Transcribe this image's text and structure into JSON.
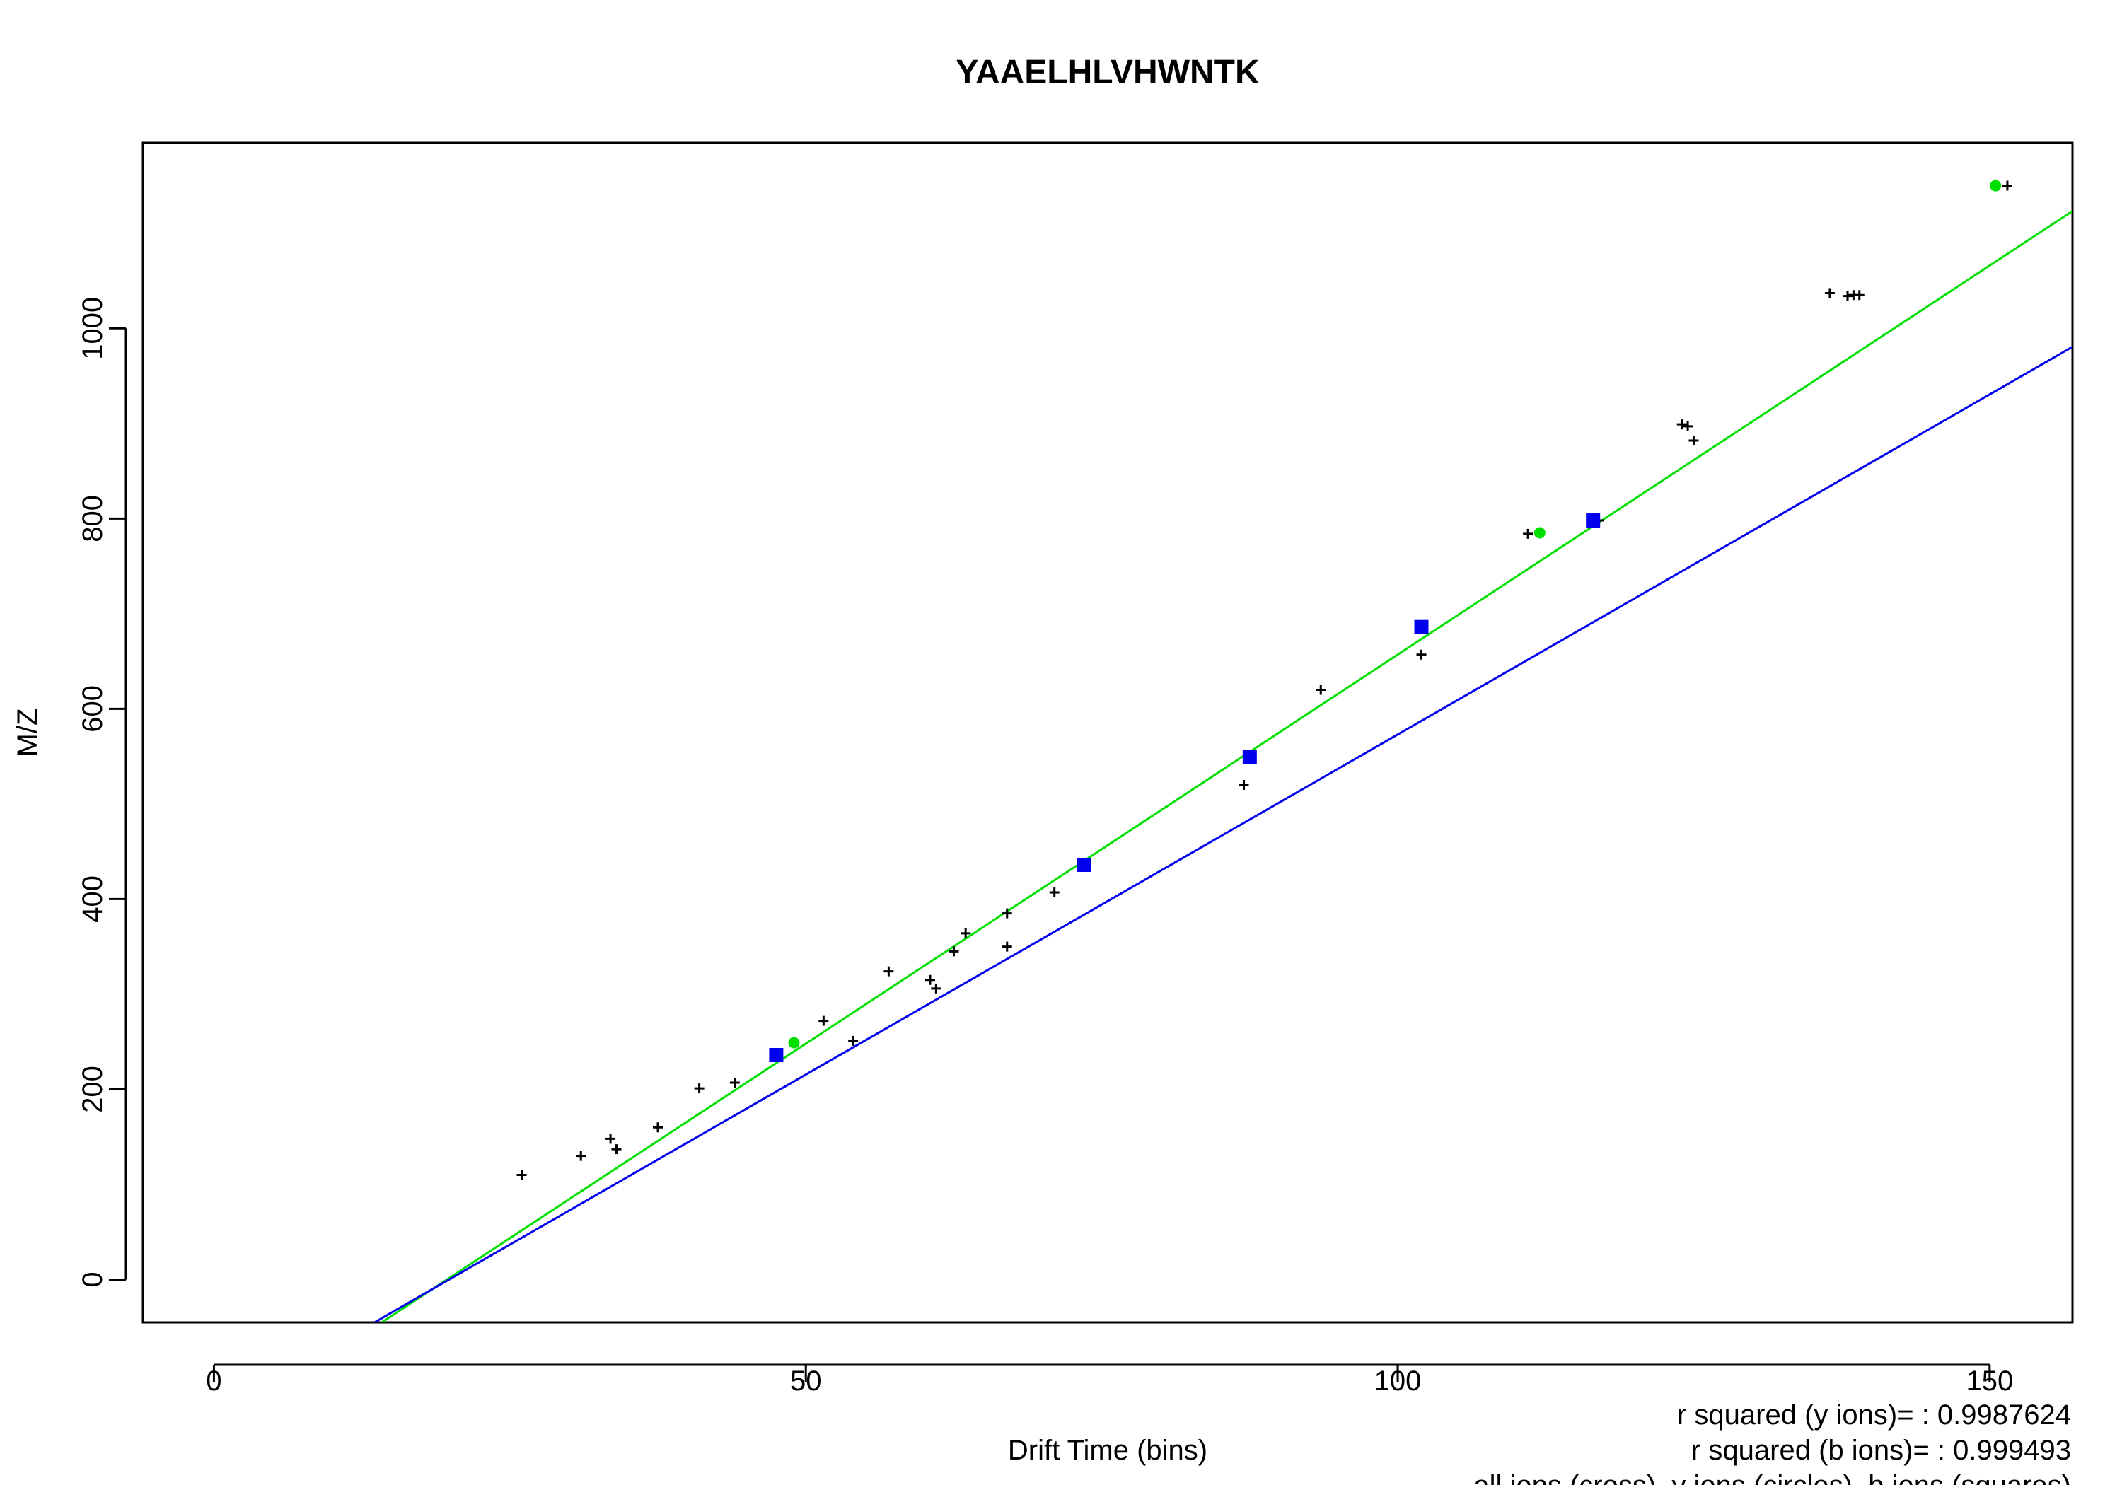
{
  "chart_data": {
    "type": "scatter",
    "title": "YAAELHLVHWNTK",
    "xlabel": "Drift Time (bins)",
    "ylabel": "M/Z",
    "xlim": [
      -6,
      157
    ],
    "ylim": [
      -45,
      1195
    ],
    "xticks": [
      0,
      50,
      100,
      150
    ],
    "yticks": [
      0,
      200,
      400,
      600,
      800,
      1000
    ],
    "grid": false,
    "notes": [
      "r squared (y ions)= : 0.9987624",
      "r squared (b ions)= : 0.999493",
      "all ions (cross), y ions (circles), b ions (squares)"
    ],
    "colors": {
      "all": "#000000",
      "y_ions": "#00e000",
      "b_ions": "#0000ee",
      "axis": "#000000"
    },
    "series": [
      {
        "marker": "cross",
        "x": [
          26,
          31,
          33.5,
          34,
          37.5,
          41,
          44,
          51.5,
          54,
          57,
          60.5,
          61,
          62.5,
          63.5,
          67,
          67,
          71,
          87,
          87.5,
          93.5,
          102,
          102,
          111,
          117,
          124,
          124.5,
          125,
          136.5,
          138,
          138.5,
          139,
          151.5
        ],
        "y": [
          110,
          130,
          148,
          137,
          160,
          201,
          207,
          272,
          251,
          324,
          315,
          306,
          345,
          364,
          385,
          350,
          407,
          520,
          549,
          620,
          686,
          657,
          784,
          798,
          899,
          897,
          882,
          1037,
          1034,
          1035,
          1035,
          1150
        ]
      },
      {
        "marker": "circle",
        "x": [
          49,
          87.5,
          102,
          112,
          150.5
        ],
        "y": [
          249,
          549,
          686,
          785,
          1150
        ]
      },
      {
        "marker": "square",
        "x": [
          47.5,
          73.5,
          87.5,
          102,
          116.5
        ],
        "y": [
          236,
          436,
          549,
          686,
          798
        ]
      }
    ],
    "fits": [
      {
        "slope": 8.18,
        "intercept": -161
      },
      {
        "slope": 7.15,
        "intercept": -142
      }
    ]
  }
}
